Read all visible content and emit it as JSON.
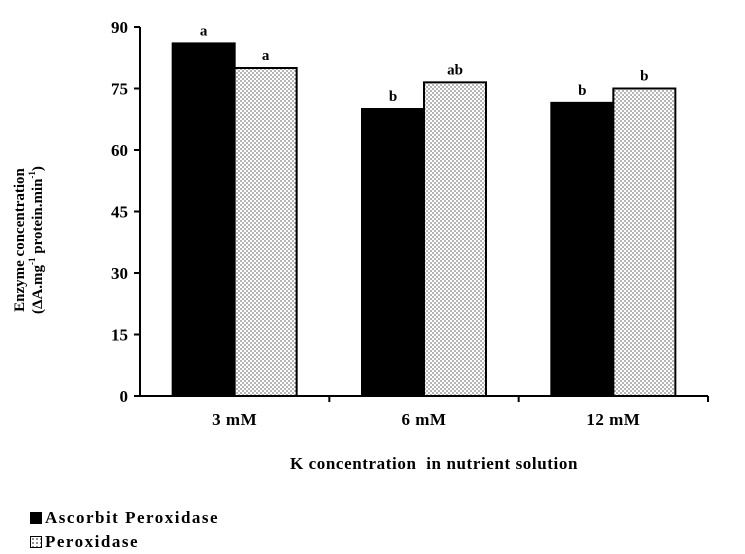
{
  "chart_data": {
    "type": "bar",
    "categories": [
      "3 mM",
      "6 mM",
      "12 mM"
    ],
    "series": [
      {
        "name": "Ascorbit Peroxidase",
        "values": [
          86,
          70,
          71.5
        ],
        "significance": [
          "a",
          "b",
          "b"
        ],
        "color": "#000000",
        "fill": "solid"
      },
      {
        "name": "Peroxidase",
        "values": [
          80,
          76.5,
          75
        ],
        "significance": [
          "a",
          "ab",
          "b"
        ],
        "color": "#ffffff",
        "fill": "dotted"
      }
    ],
    "title": "",
    "xlabel": "K concentration  in nutrient solution",
    "ylabel_line1": "Enzyme concentration",
    "ylabel_line2_parts": [
      "(ΔA.mg",
      "-1",
      " protein.min",
      "-1",
      ")"
    ],
    "ylim": [
      0,
      90
    ],
    "yticks": [
      0,
      15,
      30,
      45,
      60,
      75,
      90
    ],
    "ytick_labels": [
      "0",
      "15",
      "30",
      "45",
      "60",
      "75",
      "90"
    ],
    "grid": false,
    "legend_position": "bottom-left"
  }
}
